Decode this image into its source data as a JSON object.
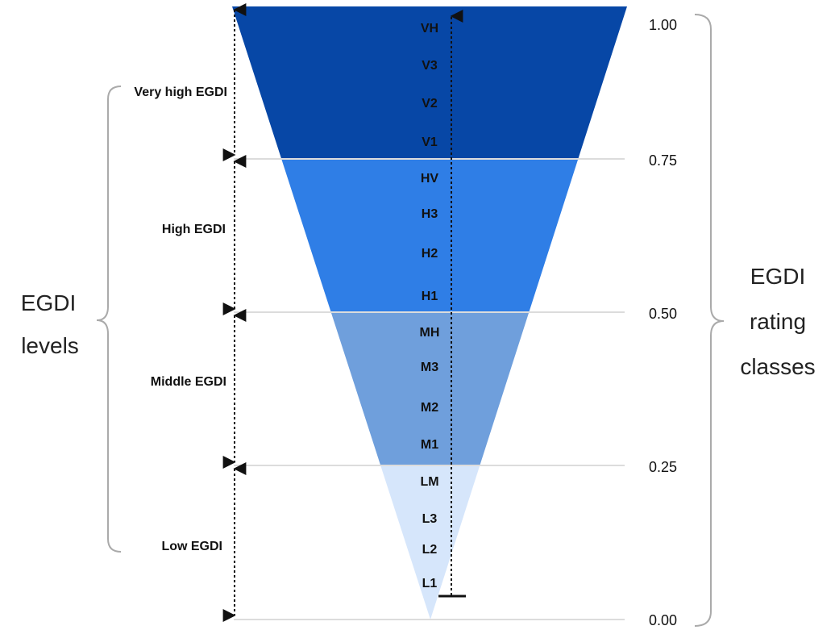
{
  "left_group": {
    "line1": "EGDI",
    "line2": "levels"
  },
  "right_group": {
    "line1": "EGDI",
    "line2": "rating",
    "line3": "classes"
  },
  "levels": [
    {
      "label": "Very high EGDI",
      "from": 0.75,
      "to": 1.0,
      "color": "#0747a6"
    },
    {
      "label": "High EGDI",
      "from": 0.5,
      "to": 0.75,
      "color": "#2f7ee6"
    },
    {
      "label": "Middle EGDI",
      "from": 0.25,
      "to": 0.5,
      "color": "#6f9fdc"
    },
    {
      "label": "Low EGDI",
      "from": 0.0,
      "to": 0.25,
      "color": "#d6e6fb"
    }
  ],
  "ticks": [
    "1.00",
    "0.75",
    "0.50",
    "0.25",
    "0.00"
  ],
  "classes": [
    "VH",
    "V3",
    "V2",
    "V1",
    "HV",
    "H3",
    "H2",
    "H1",
    "MH",
    "M3",
    "M2",
    "M1",
    "LM",
    "L3",
    "L2",
    "L1"
  ]
}
